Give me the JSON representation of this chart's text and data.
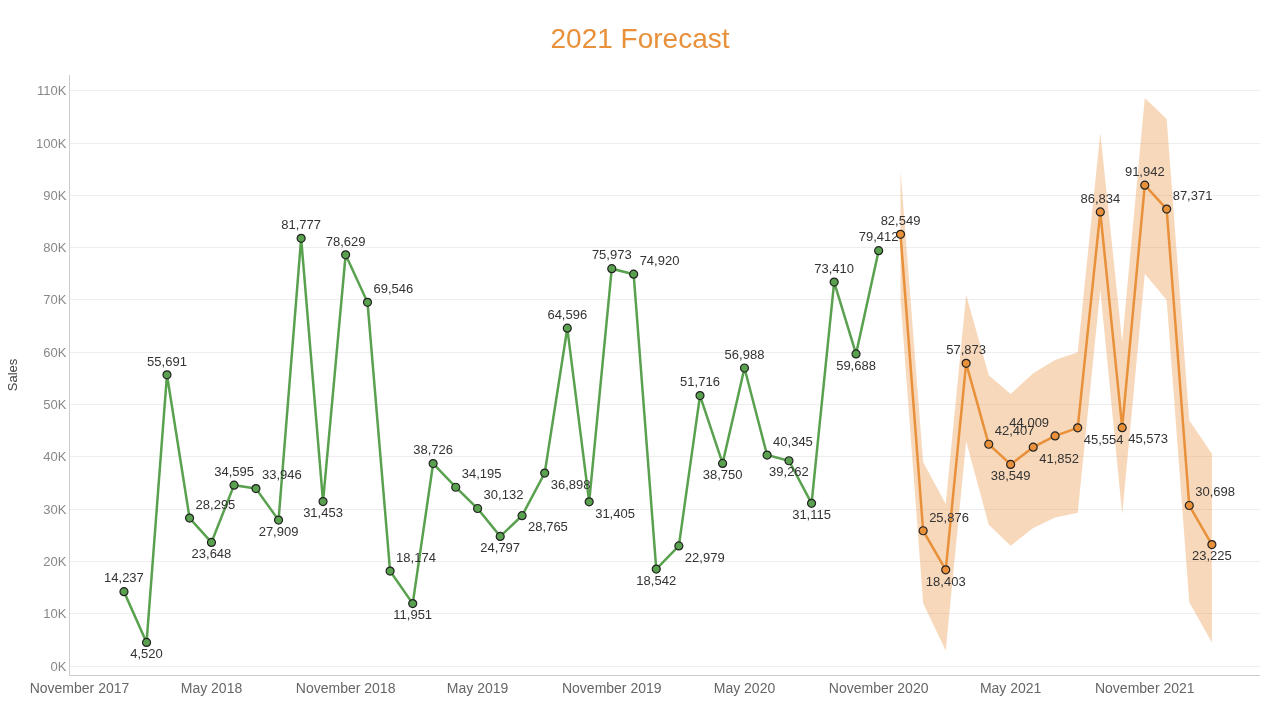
{
  "chart_data": {
    "type": "line",
    "title": "2021 Forecast",
    "ylabel": "Sales",
    "xlim": [
      "2017-10-19",
      "2022-04-08"
    ],
    "xticks": [
      {
        "value": "2017-11",
        "label": "November 2017"
      },
      {
        "value": "2018-05",
        "label": "May 2018"
      },
      {
        "value": "2018-11",
        "label": "November 2018"
      },
      {
        "value": "2019-05",
        "label": "May 2019"
      },
      {
        "value": "2019-11",
        "label": "November 2019"
      },
      {
        "value": "2020-05",
        "label": "May 2020"
      },
      {
        "value": "2020-11",
        "label": "November 2020"
      },
      {
        "value": "2021-05",
        "label": "May 2021"
      },
      {
        "value": "2021-11",
        "label": "November 2021"
      }
    ],
    "ylim": [
      -1700,
      113000
    ],
    "yticks": [
      {
        "value": 0,
        "label": "0K"
      },
      {
        "value": 10000,
        "label": "10K"
      },
      {
        "value": 20000,
        "label": "20K"
      },
      {
        "value": 30000,
        "label": "30K"
      },
      {
        "value": 40000,
        "label": "40K"
      },
      {
        "value": 50000,
        "label": "50K"
      },
      {
        "value": 60000,
        "label": "60K"
      },
      {
        "value": 70000,
        "label": "70K"
      },
      {
        "value": 80000,
        "label": "80K"
      },
      {
        "value": 90000,
        "label": "90K"
      },
      {
        "value": 100000,
        "label": "100K"
      },
      {
        "value": 110000,
        "label": "110K"
      }
    ],
    "grid": "y",
    "marker": "circle",
    "line_style": "solid",
    "series": [
      {
        "color": "#59a14f",
        "x": [
          "2018-01",
          "2018-02",
          "2018-03",
          "2018-04",
          "2018-05",
          "2018-06",
          "2018-07",
          "2018-08",
          "2018-09",
          "2018-10",
          "2018-11",
          "2018-12",
          "2019-01",
          "2019-02",
          "2019-03",
          "2019-04",
          "2019-05",
          "2019-06",
          "2019-07",
          "2019-08",
          "2019-09",
          "2019-10",
          "2019-11",
          "2019-12",
          "2020-01",
          "2020-02",
          "2020-03",
          "2020-04",
          "2020-05",
          "2020-06",
          "2020-07",
          "2020-08",
          "2020-09",
          "2020-10",
          "2020-11"
        ],
        "values": [
          14237,
          4520,
          55691,
          28295,
          23648,
          34595,
          33946,
          27909,
          81777,
          31453,
          78629,
          69546,
          18174,
          11951,
          38726,
          34195,
          30132,
          24797,
          28765,
          36898,
          64596,
          31405,
          75973,
          74920,
          18542,
          22979,
          51716,
          38750,
          56988,
          40345,
          39262,
          31115,
          73410,
          59688,
          79412
        ],
        "value_labels": [
          "14,237",
          "4,520",
          "55,691",
          "28,295",
          "23,648",
          "34,595",
          "33,946",
          "27,909",
          "81,777",
          "31,453",
          "78,629",
          "69,546",
          "18,174",
          "11,951",
          "38,726",
          "34,195",
          "30,132",
          "24,797",
          "28,765",
          "36,898",
          "64,596",
          "31,405",
          "75,973",
          "74,920",
          "18,542",
          "22,979",
          "51,716",
          "38,750",
          "56,988",
          "40,345",
          "39,262",
          "31,115",
          "73,410",
          "59,688",
          "79,412"
        ]
      },
      {
        "color": "#e8903a",
        "x": [
          "2020-12",
          "2021-01",
          "2021-02",
          "2021-03",
          "2021-04",
          "2021-05",
          "2021-06",
          "2021-07",
          "2021-08",
          "2021-09",
          "2021-10",
          "2021-11",
          "2021-12",
          "2022-01",
          "2022-02"
        ],
        "values": [
          82549,
          25876,
          18403,
          57873,
          42407,
          38549,
          41852,
          44009,
          45554,
          86834,
          45573,
          91942,
          87371,
          30698,
          23225
        ],
        "value_labels": [
          "82,549",
          "25,876",
          "18,403",
          "57,873",
          "42,407",
          "38,549",
          "41,852",
          "44,009",
          "45,554",
          "86,834",
          "45,573",
          "91,942",
          "87,371",
          "30,698",
          "23,225"
        ],
        "lower": [
          70000,
          12000,
          3000,
          43000,
          27000,
          23000,
          26400,
          28400,
          29300,
          72000,
          29000,
          75000,
          70000,
          12200,
          4500
        ],
        "upper": [
          94800,
          39000,
          31000,
          71000,
          55600,
          52000,
          56000,
          58500,
          60000,
          102000,
          62000,
          108600,
          104600,
          47000,
          40600
        ]
      }
    ]
  }
}
